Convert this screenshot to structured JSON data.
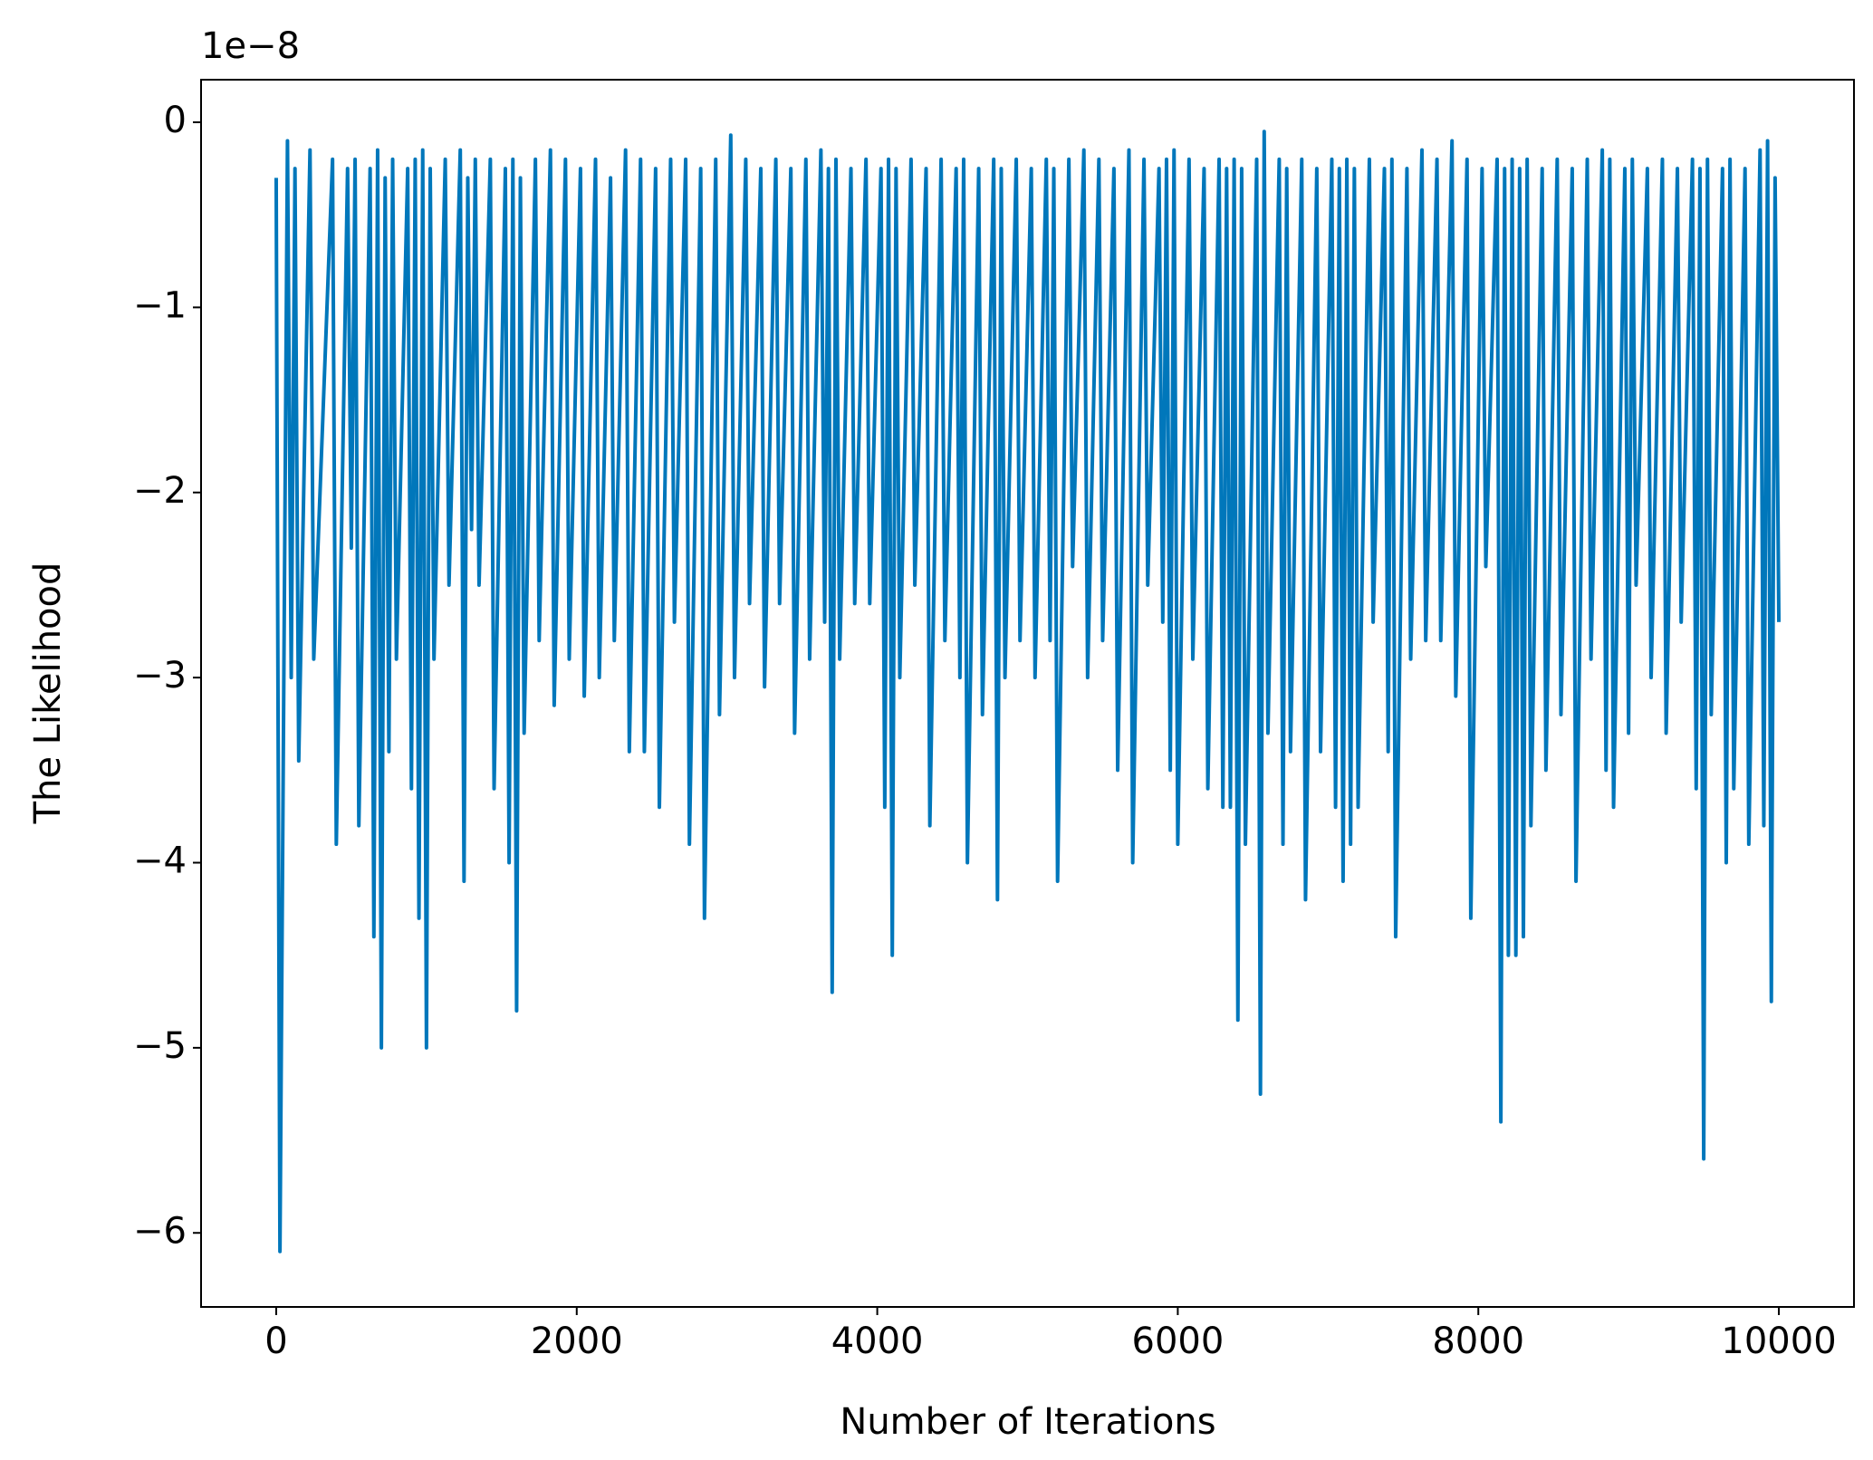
{
  "chart_data": {
    "type": "line",
    "x_label": "Number of Iterations",
    "y_label": "The Likelihood",
    "y_offset_label": "1e−8",
    "color": "#0077bb",
    "xlim": [
      -500,
      10500
    ],
    "ylim": [
      -6.4,
      0.23
    ],
    "xticks": [
      0,
      2000,
      4000,
      6000,
      8000,
      10000
    ],
    "yticks": [
      {
        "value": -6,
        "label": "−6"
      },
      {
        "value": -5,
        "label": "−5"
      },
      {
        "value": -4,
        "label": "−4"
      },
      {
        "value": -3,
        "label": "−3"
      },
      {
        "value": -2,
        "label": "−2"
      },
      {
        "value": -1,
        "label": "−1"
      },
      0
    ],
    "x": [
      0,
      25,
      75,
      100,
      125,
      150,
      225,
      250,
      375,
      400,
      475,
      500,
      525,
      550,
      625,
      650,
      675,
      700,
      725,
      750,
      775,
      800,
      875,
      900,
      925,
      950,
      975,
      1000,
      1025,
      1050,
      1125,
      1150,
      1225,
      1250,
      1275,
      1300,
      1325,
      1350,
      1425,
      1450,
      1525,
      1550,
      1575,
      1600,
      1625,
      1650,
      1725,
      1750,
      1825,
      1850,
      1925,
      1950,
      2025,
      2050,
      2125,
      2150,
      2225,
      2250,
      2325,
      2350,
      2425,
      2450,
      2525,
      2550,
      2625,
      2650,
      2725,
      2750,
      2825,
      2850,
      2925,
      2950,
      3025,
      3050,
      3125,
      3150,
      3225,
      3250,
      3325,
      3350,
      3425,
      3450,
      3525,
      3550,
      3625,
      3650,
      3675,
      3700,
      3725,
      3750,
      3825,
      3850,
      3925,
      3950,
      4025,
      4050,
      4075,
      4100,
      4125,
      4150,
      4225,
      4250,
      4325,
      4350,
      4425,
      4450,
      4525,
      4550,
      4575,
      4600,
      4675,
      4700,
      4775,
      4800,
      4825,
      4850,
      4925,
      4950,
      5025,
      5050,
      5125,
      5150,
      5175,
      5200,
      5275,
      5300,
      5375,
      5400,
      5475,
      5500,
      5575,
      5600,
      5675,
      5700,
      5775,
      5800,
      5875,
      5900,
      5925,
      5950,
      5975,
      6000,
      6075,
      6100,
      6175,
      6200,
      6275,
      6300,
      6325,
      6350,
      6375,
      6400,
      6425,
      6450,
      6525,
      6550,
      6575,
      6600,
      6675,
      6700,
      6725,
      6750,
      6825,
      6850,
      6925,
      6950,
      7025,
      7050,
      7075,
      7100,
      7125,
      7150,
      7175,
      7200,
      7275,
      7300,
      7375,
      7400,
      7425,
      7450,
      7525,
      7550,
      7625,
      7650,
      7725,
      7750,
      7825,
      7850,
      7925,
      7950,
      8025,
      8050,
      8125,
      8150,
      8175,
      8200,
      8225,
      8250,
      8275,
      8300,
      8325,
      8350,
      8425,
      8450,
      8525,
      8550,
      8625,
      8650,
      8725,
      8750,
      8825,
      8850,
      8875,
      8900,
      8975,
      9000,
      9025,
      9050,
      9125,
      9150,
      9225,
      9250,
      9325,
      9350,
      9425,
      9450,
      9475,
      9500,
      9525,
      9550,
      9625,
      9650,
      9675,
      9700,
      9775,
      9800,
      9875,
      9900,
      9925,
      9950,
      9975,
      10000
    ],
    "values": [
      -0.3,
      -6.1,
      -0.1,
      -3.0,
      -0.25,
      -3.45,
      -0.15,
      -2.9,
      -0.2,
      -3.9,
      -0.25,
      -2.3,
      -0.2,
      -3.8,
      -0.25,
      -4.4,
      -0.15,
      -5.0,
      -0.3,
      -3.4,
      -0.2,
      -2.9,
      -0.25,
      -3.6,
      -0.2,
      -4.3,
      -0.15,
      -5.0,
      -0.25,
      -2.9,
      -0.2,
      -2.5,
      -0.15,
      -4.1,
      -0.3,
      -2.2,
      -0.2,
      -2.5,
      -0.2,
      -3.6,
      -0.25,
      -4.0,
      -0.2,
      -4.8,
      -0.3,
      -3.3,
      -0.2,
      -2.8,
      -0.15,
      -3.15,
      -0.2,
      -2.9,
      -0.25,
      -3.1,
      -0.2,
      -3.0,
      -0.3,
      -2.8,
      -0.15,
      -3.4,
      -0.2,
      -3.4,
      -0.25,
      -3.7,
      -0.2,
      -2.7,
      -0.2,
      -3.9,
      -0.25,
      -4.3,
      -0.2,
      -3.2,
      -0.07,
      -3.0,
      -0.2,
      -2.6,
      -0.25,
      -3.05,
      -0.2,
      -2.6,
      -0.25,
      -3.3,
      -0.2,
      -2.9,
      -0.15,
      -2.7,
      -0.25,
      -4.7,
      -0.2,
      -2.9,
      -0.25,
      -2.6,
      -0.2,
      -2.6,
      -0.25,
      -3.7,
      -0.2,
      -4.5,
      -0.25,
      -3.0,
      -0.2,
      -2.5,
      -0.25,
      -3.8,
      -0.2,
      -2.8,
      -0.25,
      -3.0,
      -0.2,
      -4.0,
      -0.25,
      -3.2,
      -0.2,
      -4.2,
      -0.25,
      -3.0,
      -0.2,
      -2.8,
      -0.25,
      -3.0,
      -0.2,
      -2.8,
      -0.25,
      -4.1,
      -0.2,
      -2.4,
      -0.15,
      -3.0,
      -0.2,
      -2.8,
      -0.25,
      -3.5,
      -0.15,
      -4.0,
      -0.2,
      -2.5,
      -0.25,
      -2.7,
      -0.2,
      -3.5,
      -0.15,
      -3.9,
      -0.2,
      -2.9,
      -0.25,
      -3.6,
      -0.2,
      -3.7,
      -0.25,
      -3.7,
      -0.2,
      -4.85,
      -0.25,
      -3.9,
      -0.2,
      -5.25,
      -0.05,
      -3.3,
      -0.2,
      -3.9,
      -0.25,
      -3.4,
      -0.2,
      -4.2,
      -0.25,
      -3.4,
      -0.2,
      -3.7,
      -0.25,
      -4.1,
      -0.2,
      -3.9,
      -0.25,
      -3.7,
      -0.2,
      -2.7,
      -0.25,
      -3.4,
      -0.2,
      -4.4,
      -0.25,
      -2.9,
      -0.15,
      -2.8,
      -0.2,
      -2.8,
      -0.1,
      -3.1,
      -0.2,
      -4.3,
      -0.25,
      -2.4,
      -0.2,
      -5.4,
      -0.25,
      -4.5,
      -0.2,
      -4.5,
      -0.25,
      -4.4,
      -0.2,
      -3.8,
      -0.25,
      -3.5,
      -0.2,
      -3.2,
      -0.25,
      -4.1,
      -0.2,
      -2.9,
      -0.15,
      -3.5,
      -0.2,
      -3.7,
      -0.25,
      -3.3,
      -0.2,
      -2.5,
      -0.25,
      -3.0,
      -0.2,
      -3.3,
      -0.25,
      -2.7,
      -0.2,
      -3.6,
      -0.25,
      -5.6,
      -0.2,
      -3.2,
      -0.25,
      -4.0,
      -0.2,
      -3.6,
      -0.25,
      -3.9,
      -0.15,
      -3.8,
      -0.1,
      -4.75,
      -0.3,
      -2.7
    ]
  }
}
